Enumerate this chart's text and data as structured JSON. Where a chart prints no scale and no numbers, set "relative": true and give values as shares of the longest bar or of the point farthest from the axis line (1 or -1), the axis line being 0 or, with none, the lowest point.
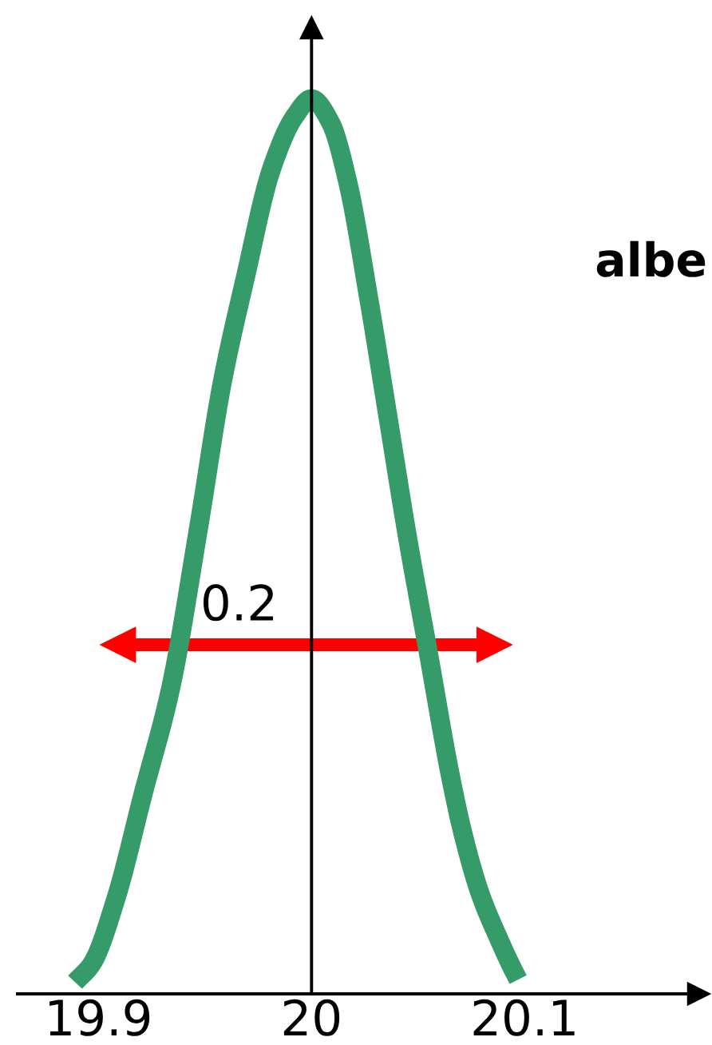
{
  "chart_data": {
    "type": "line",
    "relative": true,
    "x": [
      19.889,
      19.897,
      19.908,
      19.921,
      19.934,
      19.947,
      19.958,
      19.969,
      19.981,
      19.992,
      20,
      20.009,
      20.017,
      20.027,
      20.036,
      20.045,
      20.055,
      20.065,
      20.071,
      20.079,
      20.088,
      20.094,
      20.097
    ],
    "series": [
      {
        "color": "#ff0000",
        "x": [
          19.909,
          20.086
        ],
        "values": [
          0.39,
          0.39
        ],
        "marker": "triangle"
      },
      {
        "color": "#359b68",
        "values": [
          0.013,
          0.034,
          0.105,
          0.224,
          0.343,
          0.521,
          0.682,
          0.801,
          0.92,
          0.98,
          1,
          0.973,
          0.907,
          0.775,
          0.643,
          0.511,
          0.379,
          0.246,
          0.18,
          0.113,
          0.061,
          0.03,
          0.016
        ]
      }
    ],
    "xlim": [
      19.862,
      20.182
    ],
    "xticks": [
      19.9,
      20,
      20.1
    ],
    "tick_labels": "x",
    "grid": false,
    "ref_lines": [
      {
        "axis": "x",
        "value": 20,
        "color": "#000000"
      }
    ],
    "annotations": [
      {
        "text": "0.2",
        "x": 19.966,
        "y": 0.39
      },
      "albe"
    ]
  }
}
